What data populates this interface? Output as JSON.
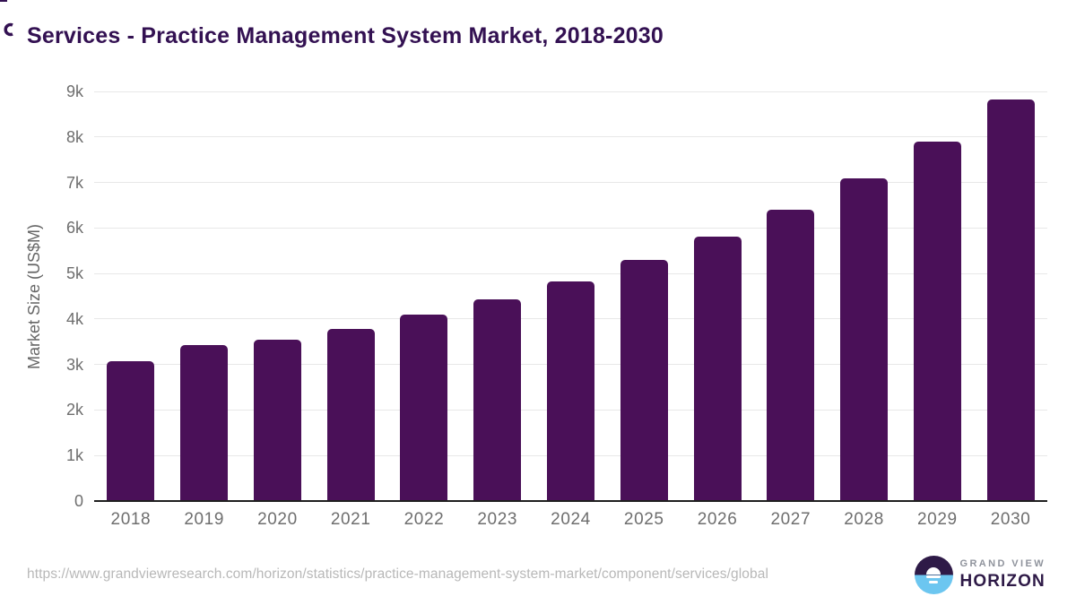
{
  "title": "Services - Practice Management System Market, 2018-2030",
  "chart_data": {
    "type": "bar",
    "title": "Services - Practice Management System Market, 2018-2030",
    "categories": [
      "2018",
      "2019",
      "2020",
      "2021",
      "2022",
      "2023",
      "2024",
      "2025",
      "2026",
      "2027",
      "2028",
      "2029",
      "2030"
    ],
    "values": [
      3070,
      3430,
      3550,
      3780,
      4100,
      4440,
      4830,
      5290,
      5810,
      6410,
      7090,
      7890,
      8820
    ],
    "xlabel": "",
    "ylabel": "Market Size (US$M)",
    "ylim": [
      0,
      9000
    ],
    "ytick_interval": 1000,
    "ytick_labels": [
      "0",
      "1k",
      "2k",
      "3k",
      "4k",
      "5k",
      "6k",
      "7k",
      "8k",
      "9k"
    ],
    "grid": "horizontal",
    "legend": "none",
    "bar_color": "#4a1058"
  },
  "footer": {
    "source_url": "https://www.grandviewresearch.com/horizon/statistics/practice-management-system-market/component/services/global"
  },
  "logo": {
    "line1": "GRAND VIEW",
    "line2": "HORIZON"
  },
  "colors": {
    "bar": "#4a1058",
    "title": "#331152",
    "axis": "#1f1f1f",
    "axis_title": "#666666",
    "grid": "#e8e8e8",
    "tick": "#6e6e6e",
    "url": "#b8b8b8",
    "logo_purple": "#2e1a47",
    "logo_blue": "#6cc6f0",
    "logo_gray": "#8f939c"
  }
}
